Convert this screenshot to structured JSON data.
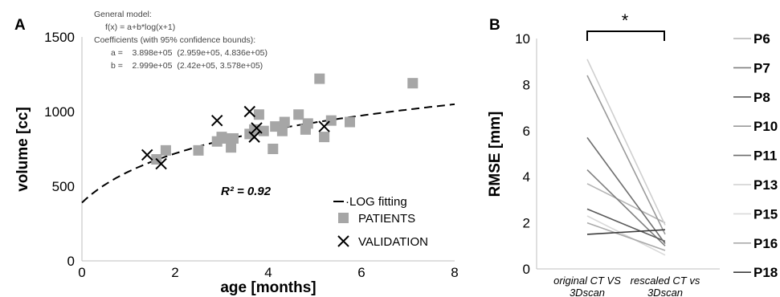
{
  "panels": {
    "a_letter": "A",
    "b_letter": "B"
  },
  "fit_annotation": {
    "line1": "General model:",
    "line2": "f(x) = a+b*log(x+1)",
    "line3": "Coefficients (with 95% confidence bounds):",
    "line4": "a =    3.898e+05  (2.959e+05, 4.836e+05)",
    "line5": "b =    2.999e+05  (2.42e+05, 3.578e+05)"
  },
  "r_squared": "R² = 0.92",
  "legend": {
    "fit": "·LOG fitting",
    "patients": "PATIENTS",
    "validation": "VALIDATION"
  },
  "significance": "*",
  "colors": {
    "patients": "#a6a6a6",
    "validation": "#000000",
    "fit_line": "#000000",
    "axis": "#bfbfbf"
  },
  "chart_data": [
    {
      "type": "scatter",
      "xlabel": "age [months]",
      "ylabel": "volume [cc]",
      "xlim": [
        0,
        8
      ],
      "ylim": [
        0,
        1500
      ],
      "xticks": [
        "0",
        "2",
        "4",
        "6",
        "8"
      ],
      "yticks": [
        "0",
        "500",
        "1000",
        "1500"
      ],
      "fit": {
        "a": 389.8,
        "b": 299.9,
        "x_from": 0,
        "x_to": 8
      },
      "series": [
        {
          "name": "PATIENTS",
          "marker": "square",
          "points": [
            [
              1.6,
              680
            ],
            [
              1.8,
              740
            ],
            [
              2.5,
              740
            ],
            [
              2.9,
              800
            ],
            [
              3.0,
              830
            ],
            [
              3.1,
              820
            ],
            [
              3.2,
              760
            ],
            [
              3.25,
              820
            ],
            [
              3.6,
              850
            ],
            [
              3.7,
              880
            ],
            [
              3.8,
              980
            ],
            [
              3.9,
              870
            ],
            [
              4.1,
              750
            ],
            [
              4.15,
              900
            ],
            [
              4.3,
              870
            ],
            [
              4.35,
              930
            ],
            [
              4.65,
              980
            ],
            [
              4.8,
              880
            ],
            [
              4.85,
              920
            ],
            [
              5.1,
              1220
            ],
            [
              5.2,
              830
            ],
            [
              5.35,
              940
            ],
            [
              5.75,
              930
            ],
            [
              7.1,
              1190
            ]
          ]
        },
        {
          "name": "VALIDATION",
          "marker": "x",
          "points": [
            [
              1.4,
              710
            ],
            [
              1.7,
              650
            ],
            [
              2.9,
              940
            ],
            [
              3.6,
              1000
            ],
            [
              3.7,
              830
            ],
            [
              3.75,
              890
            ],
            [
              5.2,
              900
            ]
          ]
        }
      ]
    },
    {
      "type": "line",
      "ylabel": "RMSE [mm]",
      "ylim": [
        0,
        10
      ],
      "yticks": [
        "0",
        "2",
        "4",
        "6",
        "8",
        "10"
      ],
      "categories": [
        "original CT VS 3Dscan",
        "rescaled CT vs 3Dscan"
      ],
      "category_lines": [
        [
          "original CT VS",
          "3Dscan"
        ],
        [
          "rescaled CT vs",
          "3Dscan"
        ]
      ],
      "series": [
        {
          "name": "P6",
          "color": "#b4b4b4",
          "values": [
            3.7,
            2.0
          ]
        },
        {
          "name": "P7",
          "color": "#7f7f7f",
          "values": [
            4.3,
            1.0
          ]
        },
        {
          "name": "P8",
          "color": "#5a5a5a",
          "values": [
            2.6,
            1.2
          ]
        },
        {
          "name": "P10",
          "color": "#9a9a9a",
          "values": [
            8.4,
            1.5
          ]
        },
        {
          "name": "P11",
          "color": "#6e6e6e",
          "values": [
            5.7,
            1.1
          ]
        },
        {
          "name": "P13",
          "color": "#cfcfcf",
          "values": [
            9.1,
            1.9
          ]
        },
        {
          "name": "P15",
          "color": "#d9d9d9",
          "values": [
            2.3,
            0.6
          ]
        },
        {
          "name": "P16",
          "color": "#aaaaaa",
          "values": [
            2.0,
            0.8
          ]
        },
        {
          "name": "P18",
          "color": "#3c3c3c",
          "values": [
            1.5,
            1.7
          ]
        }
      ]
    }
  ]
}
